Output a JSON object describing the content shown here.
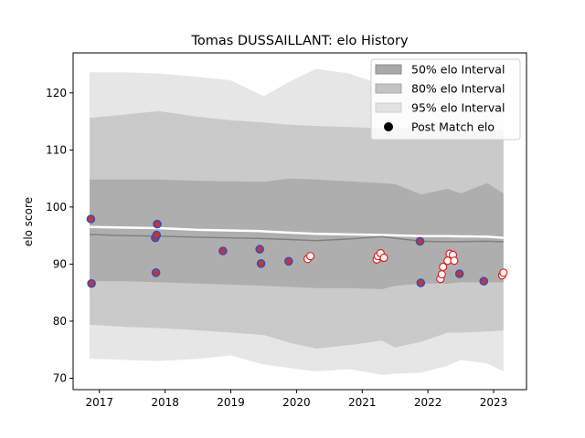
{
  "chart_data": {
    "type": "scatter",
    "title": "Tomas DUSSAILLANT: elo History",
    "xlabel": "",
    "ylabel": "elo score",
    "xlim": [
      2016.6,
      2023.5
    ],
    "ylim": [
      68,
      127
    ],
    "x_ticks": [
      2017,
      2018,
      2019,
      2020,
      2021,
      2022,
      2023
    ],
    "y_ticks": [
      70,
      80,
      90,
      100,
      110,
      120
    ],
    "grid": false,
    "legend_position": "top-right",
    "legend": [
      {
        "label": "50% elo Interval",
        "kind": "band50"
      },
      {
        "label": "80% elo Interval",
        "kind": "band80"
      },
      {
        "label": "95% elo Interval",
        "kind": "band95"
      },
      {
        "label": "Post Match elo",
        "kind": "marker"
      }
    ],
    "colors": {
      "band50": "#a9a9a9",
      "band80": "#c4c4c4",
      "band95": "#e2e2e2",
      "mean_line": "#808080",
      "upper_line": "#ffffff",
      "win_face": "#c0392b",
      "win_edge": "#3b4cc0",
      "loss_face": "#ffffff",
      "loss_edge": "#e02020"
    },
    "series": [
      {
        "name": "Mean elo",
        "x": [
          2016.85,
          2017.3,
          2017.9,
          2018.5,
          2019.4,
          2019.9,
          2020.3,
          2020.8,
          2021.3,
          2021.9,
          2022.3,
          2022.9,
          2023.15
        ],
        "y": [
          95.2,
          95.0,
          94.9,
          94.7,
          94.5,
          94.3,
          94.1,
          94.4,
          94.8,
          94.0,
          93.9,
          94.0,
          93.9
        ]
      },
      {
        "name": "Upper line",
        "x": [
          2016.85,
          2017.9,
          2018.5,
          2019.4,
          2019.9,
          2020.3,
          2020.8,
          2021.3,
          2021.9,
          2022.3,
          2022.9,
          2023.15
        ],
        "y": [
          96.5,
          96.3,
          96.0,
          95.8,
          95.5,
          95.3,
          95.2,
          95.1,
          94.9,
          94.9,
          94.8,
          94.6
        ]
      },
      {
        "name": "50% elo Interval",
        "x": [
          2016.85,
          2017.4,
          2017.9,
          2018.5,
          2019.0,
          2019.5,
          2019.9,
          2020.3,
          2020.8,
          2021.3,
          2021.5,
          2021.9,
          2022.3,
          2022.5,
          2022.9,
          2023.15
        ],
        "upper": [
          104.8,
          104.8,
          104.8,
          104.6,
          104.5,
          104.4,
          105.0,
          104.8,
          104.5,
          104.2,
          104.0,
          102.2,
          103.2,
          102.4,
          104.2,
          102.4
        ],
        "lower": [
          87.0,
          87.0,
          86.8,
          86.6,
          86.4,
          86.2,
          86.0,
          85.8,
          85.8,
          85.6,
          86.2,
          86.6,
          86.6,
          86.8,
          86.8,
          86.8
        ]
      },
      {
        "name": "80% elo Interval",
        "x": [
          2016.85,
          2017.4,
          2017.9,
          2018.5,
          2019.0,
          2019.5,
          2019.9,
          2020.3,
          2020.8,
          2021.3,
          2021.5,
          2021.9,
          2022.3,
          2022.5,
          2022.9,
          2023.15
        ],
        "upper": [
          115.6,
          116.2,
          116.8,
          115.8,
          115.2,
          114.8,
          114.4,
          114.2,
          114.0,
          113.8,
          114.0,
          113.6,
          113.4,
          113.4,
          113.2,
          113.6
        ],
        "lower": [
          79.4,
          79.0,
          78.8,
          78.4,
          78.0,
          77.6,
          76.2,
          75.2,
          75.8,
          76.6,
          75.4,
          76.4,
          78.0,
          78.0,
          78.2,
          78.4
        ]
      },
      {
        "name": "95% elo Interval",
        "x": [
          2016.85,
          2017.4,
          2017.9,
          2018.5,
          2019.0,
          2019.5,
          2019.9,
          2020.3,
          2020.8,
          2021.3,
          2021.5,
          2021.9,
          2022.3,
          2022.5,
          2022.9,
          2023.15
        ],
        "upper": [
          123.6,
          123.6,
          123.4,
          122.8,
          122.2,
          119.4,
          122.0,
          124.2,
          123.4,
          121.4,
          121.2,
          121.0,
          121.0,
          121.2,
          121.2,
          121.4
        ],
        "lower": [
          73.4,
          73.2,
          73.0,
          73.4,
          74.0,
          72.4,
          71.8,
          71.2,
          71.6,
          70.6,
          70.8,
          71.0,
          72.2,
          73.2,
          72.6,
          71.2
        ]
      }
    ],
    "points_won": [
      {
        "x": 2016.87,
        "y": 97.9
      },
      {
        "x": 2016.88,
        "y": 86.6
      },
      {
        "x": 2017.85,
        "y": 94.6
      },
      {
        "x": 2017.87,
        "y": 95.1
      },
      {
        "x": 2017.88,
        "y": 97.0
      },
      {
        "x": 2017.86,
        "y": 88.5
      },
      {
        "x": 2018.88,
        "y": 92.3
      },
      {
        "x": 2019.44,
        "y": 92.6
      },
      {
        "x": 2019.46,
        "y": 90.1
      },
      {
        "x": 2019.88,
        "y": 90.5
      },
      {
        "x": 2021.88,
        "y": 94.0
      },
      {
        "x": 2021.89,
        "y": 86.7
      },
      {
        "x": 2022.48,
        "y": 88.3
      },
      {
        "x": 2022.85,
        "y": 87.0
      }
    ],
    "points_lost": [
      {
        "x": 2020.17,
        "y": 90.9
      },
      {
        "x": 2020.21,
        "y": 91.4
      },
      {
        "x": 2021.22,
        "y": 90.8
      },
      {
        "x": 2021.24,
        "y": 91.4
      },
      {
        "x": 2021.28,
        "y": 91.9
      },
      {
        "x": 2021.33,
        "y": 91.1
      },
      {
        "x": 2022.19,
        "y": 87.4
      },
      {
        "x": 2022.21,
        "y": 88.2
      },
      {
        "x": 2022.23,
        "y": 89.5
      },
      {
        "x": 2022.3,
        "y": 90.6
      },
      {
        "x": 2022.33,
        "y": 91.8
      },
      {
        "x": 2022.38,
        "y": 91.6
      },
      {
        "x": 2022.4,
        "y": 90.6
      },
      {
        "x": 2023.13,
        "y": 88.0
      },
      {
        "x": 2023.15,
        "y": 88.5
      }
    ]
  }
}
